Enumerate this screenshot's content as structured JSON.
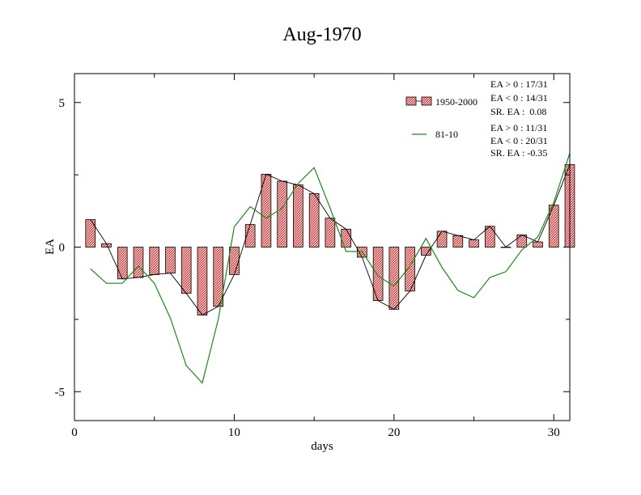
{
  "chart_data": {
    "type": "bar",
    "title": "Aug-1970",
    "xlabel": "days",
    "ylabel": "EA",
    "xlim": [
      0,
      31
    ],
    "ylim": [
      -6,
      6
    ],
    "x_ticks": [
      0,
      10,
      20,
      30
    ],
    "y_ticks": [
      -5,
      0,
      5
    ],
    "grid": false,
    "legend_placement": "top-right",
    "x": [
      1,
      2,
      3,
      4,
      5,
      6,
      7,
      8,
      9,
      10,
      11,
      12,
      13,
      14,
      15,
      16,
      17,
      18,
      19,
      20,
      21,
      22,
      23,
      24,
      25,
      26,
      27,
      28,
      29,
      30,
      31
    ],
    "series": [
      {
        "name": "1950-2000",
        "kind": "bar",
        "color": "#e87878",
        "values": [
          0.95,
          0.12,
          -1.1,
          -1.05,
          -0.95,
          -0.9,
          -1.6,
          -2.35,
          -2.05,
          -0.95,
          0.78,
          2.52,
          2.28,
          2.15,
          1.85,
          1.0,
          0.62,
          -0.35,
          -1.85,
          -2.15,
          -1.52,
          -0.28,
          0.55,
          0.4,
          0.25,
          0.72,
          0.0,
          0.42,
          0.18,
          1.45,
          2.85
        ]
      },
      {
        "name": "81-10",
        "kind": "line",
        "color": "#1a8c1a",
        "values": [
          -0.75,
          -1.25,
          -1.25,
          -0.65,
          -1.25,
          -2.45,
          -4.1,
          -4.7,
          -2.5,
          0.7,
          1.4,
          1.0,
          1.35,
          2.2,
          2.75,
          1.35,
          -0.15,
          -0.15,
          -1.0,
          -1.35,
          -0.65,
          0.3,
          -0.7,
          -1.5,
          -1.75,
          -1.05,
          -0.85,
          -0.1,
          0.35,
          1.55,
          3.25
        ]
      }
    ],
    "stats": [
      [
        "EA > 0 : 17/31",
        "EA < 0 : 14/31",
        "SR. EA :  0.08"
      ],
      [
        "EA > 0 : 11/31",
        "EA < 0 : 20/31",
        "SR. EA : -0.35"
      ]
    ]
  }
}
